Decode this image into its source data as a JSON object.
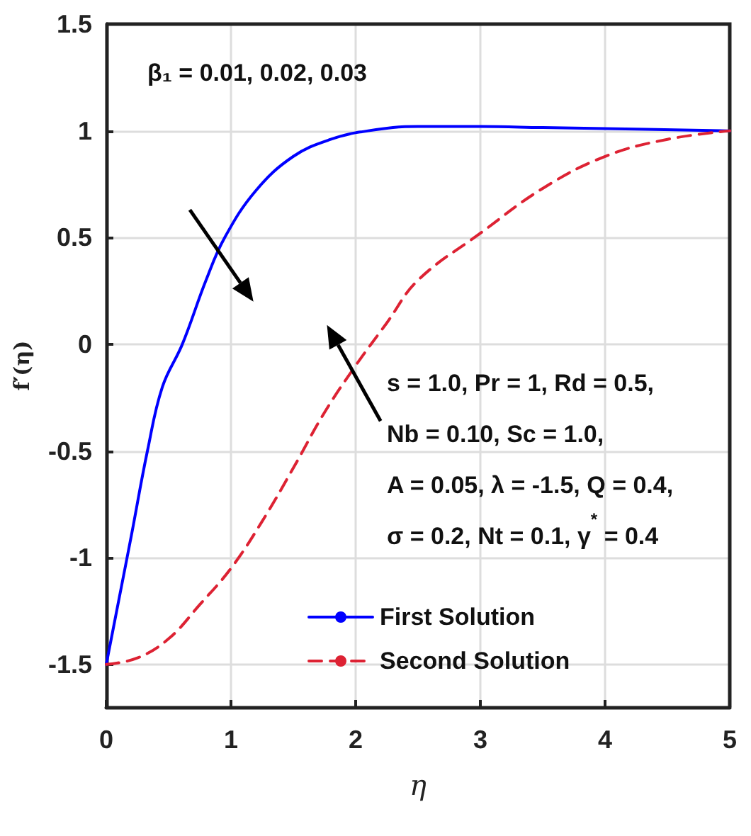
{
  "chart_data": {
    "type": "line",
    "xlabel": "η",
    "ylabel": "f′(η)",
    "xlim": [
      0,
      5
    ],
    "xticks": [
      0,
      1,
      2,
      3,
      4,
      5
    ],
    "ylim": [
      -1.7,
      1.5
    ],
    "yticks": [
      -1.5,
      -1,
      -0.5,
      0,
      0.5,
      1,
      1.5
    ],
    "grid": true,
    "legend": "bottom",
    "marker": "none",
    "annotations": [
      "β₁ = 0.01, 0.02, 0.03",
      "s = 1.0, Pr = 1, Rd = 0.5,\nNb = 0.10, Sc = 1.0,\nA = 0.05, λ = -1.5, Q = 0.4,\nσ = 0.2, Nt = 0.1, γ$^{*}$ = 0.4"
    ],
    "series": [
      {
        "name": "First Solution",
        "color": "#0000ff",
        "line_style": "solid",
        "x": [
          0,
          0.1,
          0.2,
          0.33,
          0.45,
          0.61,
          0.8,
          0.95,
          1.2,
          1.5,
          1.8,
          2.1,
          2.5,
          3,
          3.5,
          4,
          5
        ],
        "values": [
          -1.5,
          -1.2,
          -0.9,
          -0.5,
          -0.2,
          0,
          0.3,
          0.5,
          0.72,
          0.88,
          0.96,
          1.0,
          1.02,
          1.02,
          1.015,
          1.01,
          1.0
        ]
      },
      {
        "name": "Second Solution",
        "color": "#dd2233",
        "line_style": "dashed",
        "x": [
          0,
          0.25,
          0.5,
          0.75,
          1,
          1.25,
          1.5,
          1.75,
          2,
          2.25,
          2.5,
          3,
          3.5,
          4,
          4.5,
          5
        ],
        "values": [
          -1.5,
          -1.47,
          -1.38,
          -1.22,
          -1.05,
          -0.83,
          -0.58,
          -0.32,
          -0.1,
          0.1,
          0.3,
          0.52,
          0.73,
          0.88,
          0.96,
          1.0
        ]
      }
    ]
  }
}
